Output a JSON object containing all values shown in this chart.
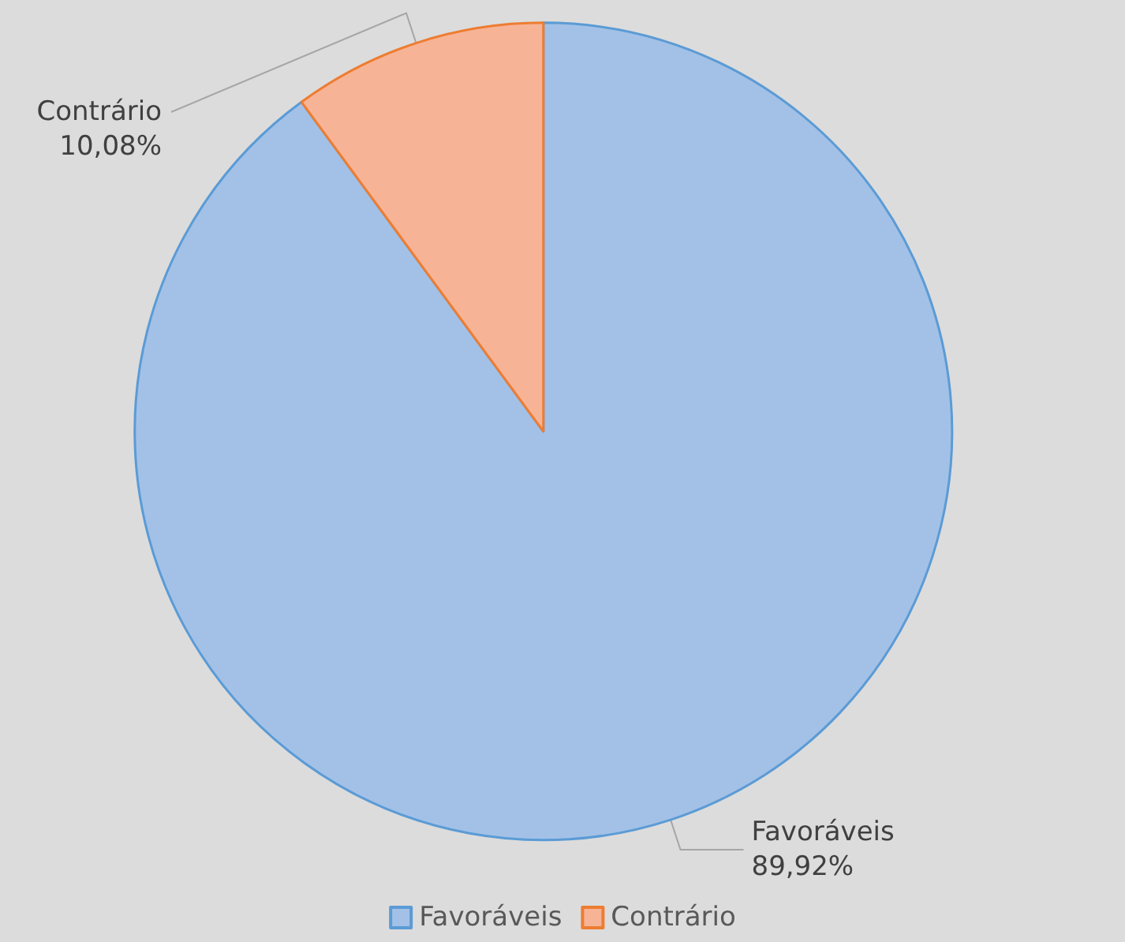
{
  "chart_data": {
    "type": "pie",
    "categories": [
      "Favoráveis",
      "Contrário"
    ],
    "values": [
      89.92,
      10.08
    ],
    "colors": [
      "#a3c1e7",
      "#f7b396"
    ],
    "value_labels": [
      "89,92%",
      "10,08%"
    ],
    "legend": "bottom"
  }
}
